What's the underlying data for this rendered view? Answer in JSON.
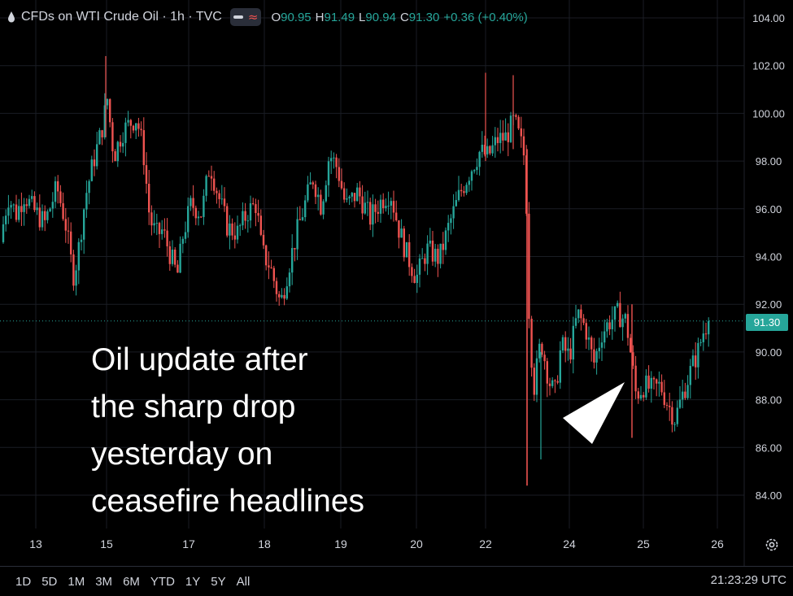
{
  "header": {
    "title": "CFDs on WTI Crude Oil · 1h · TVC",
    "ohlc": [
      {
        "key": "O",
        "value": "90.95"
      },
      {
        "key": "H",
        "value": "91.49"
      },
      {
        "key": "L",
        "value": "90.94"
      },
      {
        "key": "C",
        "value": "91.30"
      },
      {
        "key": "",
        "value": "+0.36 (+0.40%)"
      }
    ]
  },
  "annotation": {
    "lines": [
      "Oil update after",
      "the sharp drop",
      "yesterday on",
      "ceasefire headlines"
    ]
  },
  "price_label": "91.30",
  "ranges": [
    "1D",
    "5D",
    "1M",
    "3M",
    "6M",
    "YTD",
    "1Y",
    "5Y",
    "All"
  ],
  "clock": "21:23:29 UTC",
  "icons": {
    "header": "droplet-icon",
    "settings": "gear-icon",
    "pointer": "arrow-pointer-icon"
  },
  "colors": {
    "up": "#26a69a",
    "down": "#ef5350",
    "background": "#000000",
    "grid": "#1a1d24",
    "text": "#d1d4dc"
  },
  "chart_data": {
    "type": "candlestick",
    "title": "CFDs on WTI Crude Oil · 1h · TVC",
    "y_ticks": [
      "104.00",
      "102.00",
      "100.00",
      "98.00",
      "96.00",
      "94.00",
      "92.00",
      "90.00",
      "88.00",
      "86.00",
      "84.00"
    ],
    "y_range": [
      83.0,
      104.5
    ],
    "x_ticks": [
      "13",
      "15",
      "17",
      "18",
      "19",
      "20",
      "22",
      "24",
      "25",
      "26"
    ],
    "last_price": 91.3,
    "close_path": [
      [
        0,
        94.6
      ],
      [
        10,
        96.5
      ],
      [
        20,
        95.8
      ],
      [
        30,
        96.6
      ],
      [
        40,
        96.0
      ],
      [
        55,
        95.4
      ],
      [
        70,
        96.9
      ],
      [
        80,
        95.5
      ],
      [
        90,
        93.2
      ],
      [
        95,
        93.9
      ],
      [
        105,
        96.5
      ],
      [
        115,
        98.0
      ],
      [
        125,
        99.3
      ],
      [
        132,
        100.6
      ],
      [
        140,
        98.2
      ],
      [
        150,
        99.2
      ],
      [
        160,
        99.6
      ],
      [
        168,
        99.8
      ],
      [
        176,
        98.5
      ],
      [
        184,
        95.6
      ],
      [
        192,
        94.9
      ],
      [
        200,
        95.1
      ],
      [
        210,
        94.0
      ],
      [
        218,
        93.2
      ],
      [
        225,
        94.9
      ],
      [
        235,
        96.2
      ],
      [
        248,
        95.8
      ],
      [
        258,
        97.9
      ],
      [
        268,
        96.6
      ],
      [
        280,
        95.2
      ],
      [
        292,
        95.0
      ],
      [
        305,
        95.9
      ],
      [
        315,
        96.2
      ],
      [
        322,
        94.2
      ],
      [
        332,
        93.6
      ],
      [
        345,
        92.0
      ],
      [
        355,
        93.6
      ],
      [
        365,
        95.0
      ],
      [
        375,
        96.2
      ],
      [
        385,
        97.3
      ],
      [
        395,
        96.1
      ],
      [
        405,
        98.3
      ],
      [
        415,
        97.7
      ],
      [
        425,
        96.1
      ],
      [
        440,
        96.7
      ],
      [
        455,
        95.6
      ],
      [
        470,
        96.4
      ],
      [
        480,
        96.7
      ],
      [
        490,
        95.2
      ],
      [
        500,
        94.1
      ],
      [
        512,
        93.1
      ],
      [
        525,
        94.3
      ],
      [
        540,
        93.9
      ],
      [
        552,
        95.3
      ],
      [
        565,
        96.6
      ],
      [
        578,
        97.6
      ],
      [
        590,
        98.4
      ],
      [
        600,
        98.2
      ],
      [
        612,
        98.9
      ],
      [
        622,
        99.0
      ],
      [
        632,
        99.7
      ],
      [
        640,
        98.8
      ],
      [
        646,
        98.0
      ],
      [
        650,
        92.0
      ],
      [
        656,
        88.4
      ],
      [
        665,
        90.5
      ],
      [
        675,
        88.8
      ],
      [
        682,
        88.2
      ],
      [
        690,
        90.3
      ],
      [
        700,
        89.8
      ],
      [
        710,
        91.6
      ],
      [
        720,
        91.0
      ],
      [
        730,
        89.5
      ],
      [
        740,
        90.8
      ],
      [
        750,
        91.3
      ],
      [
        760,
        91.6
      ],
      [
        770,
        91.3
      ],
      [
        776,
        89.8
      ],
      [
        782,
        88.2
      ],
      [
        792,
        88.6
      ],
      [
        802,
        88.4
      ],
      [
        812,
        88.6
      ],
      [
        820,
        87.9
      ],
      [
        830,
        87.2
      ],
      [
        840,
        88.3
      ],
      [
        850,
        89.3
      ],
      [
        858,
        90.0
      ],
      [
        866,
        91.0
      ],
      [
        872,
        91.3
      ]
    ]
  }
}
